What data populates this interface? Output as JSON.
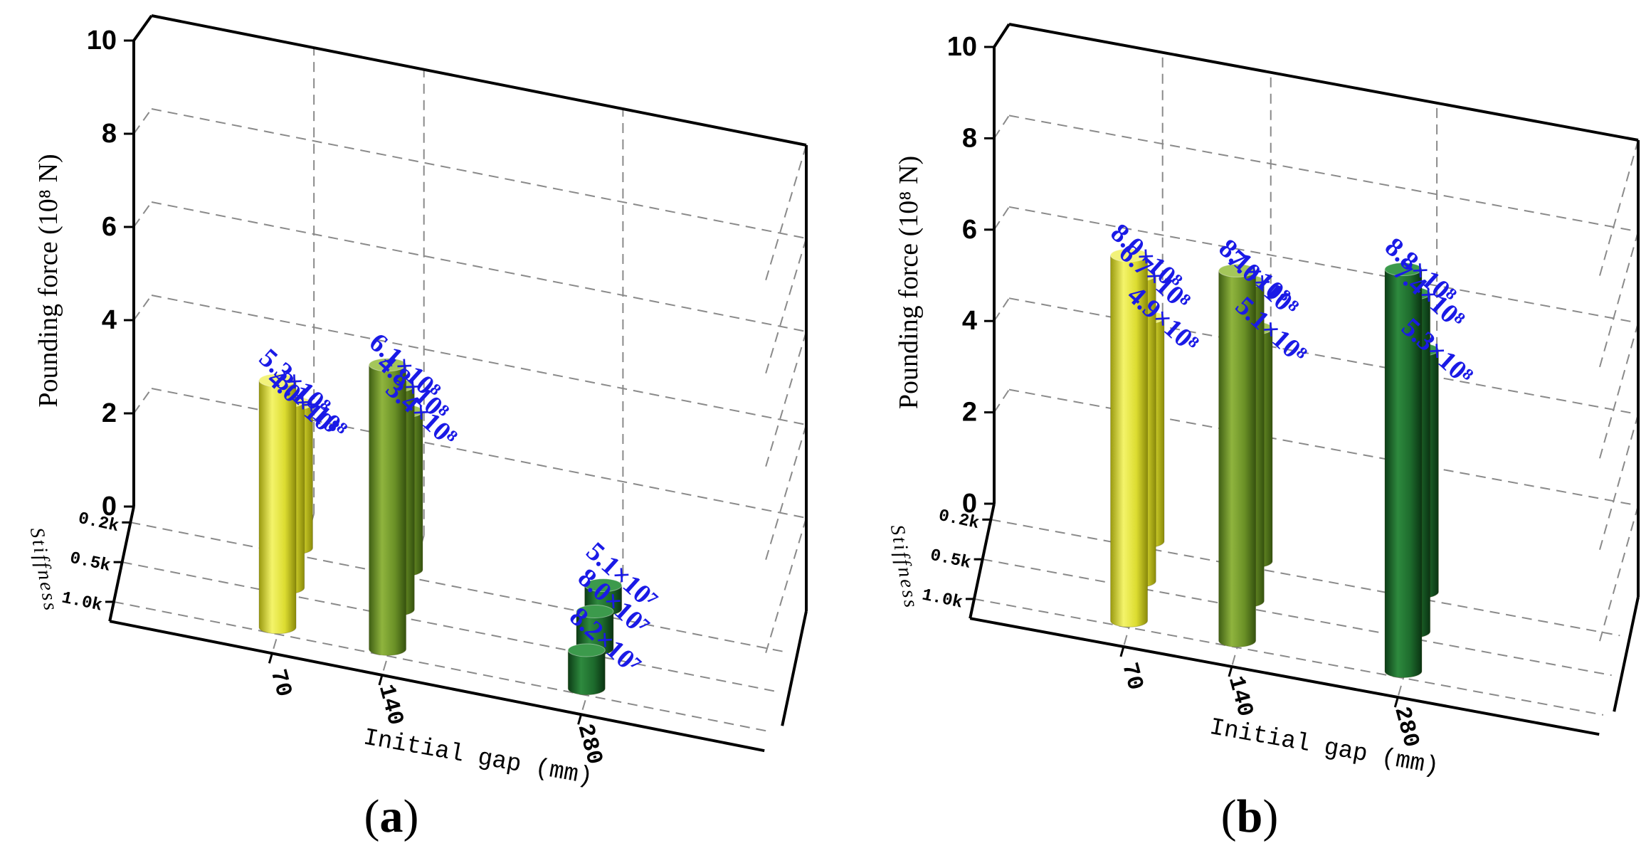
{
  "chart_data": [
    {
      "type": "bar3d",
      "panel": "(a)",
      "panel_letter": "a",
      "ylabel": "Pounding force  (10⁸ N)",
      "xlabel": "Initial gap (mm)",
      "zlabel": "Stiffness",
      "ylim": [
        0,
        10
      ],
      "yticks": [
        "0",
        "2",
        "4",
        "6",
        "8",
        "10"
      ],
      "gap_categories": [
        "70",
        "140",
        "280"
      ],
      "stiffness_categories": [
        "0.2k",
        "0.5k",
        "1.0k"
      ],
      "colors": {
        "0.2k_group": "#dede3a",
        "70": "#dede3a",
        "140": "#6f9a2c",
        "280": "#1e6a2e",
        "label": "#1a1ae6"
      },
      "bars": [
        {
          "gap": "70",
          "stiffness": "0.2k",
          "value": 3.1,
          "label": "3.1×10⁸"
        },
        {
          "gap": "70",
          "stiffness": "0.5k",
          "value": 4.0,
          "label": "4.0×10⁸"
        },
        {
          "gap": "70",
          "stiffness": "1.0k",
          "value": 5.3,
          "label": "5.3×10⁸"
        },
        {
          "gap": "140",
          "stiffness": "0.2k",
          "value": 3.4,
          "label": "3.4×10⁸"
        },
        {
          "gap": "140",
          "stiffness": "0.5k",
          "value": 4.8,
          "label": "4.8×10⁸"
        },
        {
          "gap": "140",
          "stiffness": "1.0k",
          "value": 6.1,
          "label": "6.1×10⁸"
        },
        {
          "gap": "280",
          "stiffness": "0.2k",
          "value": 0.51,
          "label": "5.1×10⁷"
        },
        {
          "gap": "280",
          "stiffness": "0.5k",
          "value": 0.8,
          "label": "8.0×10⁷"
        },
        {
          "gap": "280",
          "stiffness": "1.0k",
          "value": 0.82,
          "label": "8.2×10⁷"
        }
      ]
    },
    {
      "type": "bar3d",
      "panel": "(b)",
      "panel_letter": "b",
      "ylabel": "Pounding force  (10⁸ N)",
      "xlabel": "Initial gap (mm)",
      "zlabel": "Stiffness",
      "ylim": [
        0,
        10
      ],
      "yticks": [
        "0",
        "2",
        "4",
        "6",
        "8",
        "10"
      ],
      "gap_categories": [
        "70",
        "140",
        "280"
      ],
      "stiffness_categories": [
        "0.2k",
        "0.5k",
        "1.0k"
      ],
      "colors": {
        "70": "#dede3a",
        "140": "#6f9a2c",
        "280": "#1e6a2e",
        "label": "#1a1ae6"
      },
      "bars": [
        {
          "gap": "70",
          "stiffness": "0.2k",
          "value": 4.9,
          "label": "4.9×10⁸"
        },
        {
          "gap": "70",
          "stiffness": "0.5k",
          "value": 6.7,
          "label": "6.7×10⁸"
        },
        {
          "gap": "70",
          "stiffness": "1.0k",
          "value": 8.0,
          "label": "8.0×10⁸"
        },
        {
          "gap": "140",
          "stiffness": "0.2k",
          "value": 5.1,
          "label": "5.1×10⁸"
        },
        {
          "gap": "140",
          "stiffness": "0.5k",
          "value": 7.0,
          "label": "7.0×10⁸"
        },
        {
          "gap": "140",
          "stiffness": "1.0k",
          "value": 8.1,
          "label": "8.1×10⁸"
        },
        {
          "gap": "280",
          "stiffness": "0.2k",
          "value": 5.3,
          "label": "5.3×10⁸"
        },
        {
          "gap": "280",
          "stiffness": "0.5k",
          "value": 7.4,
          "label": "7.4×10⁸"
        },
        {
          "gap": "280",
          "stiffness": "1.0k",
          "value": 8.8,
          "label": "8.8×10⁸"
        }
      ]
    }
  ]
}
